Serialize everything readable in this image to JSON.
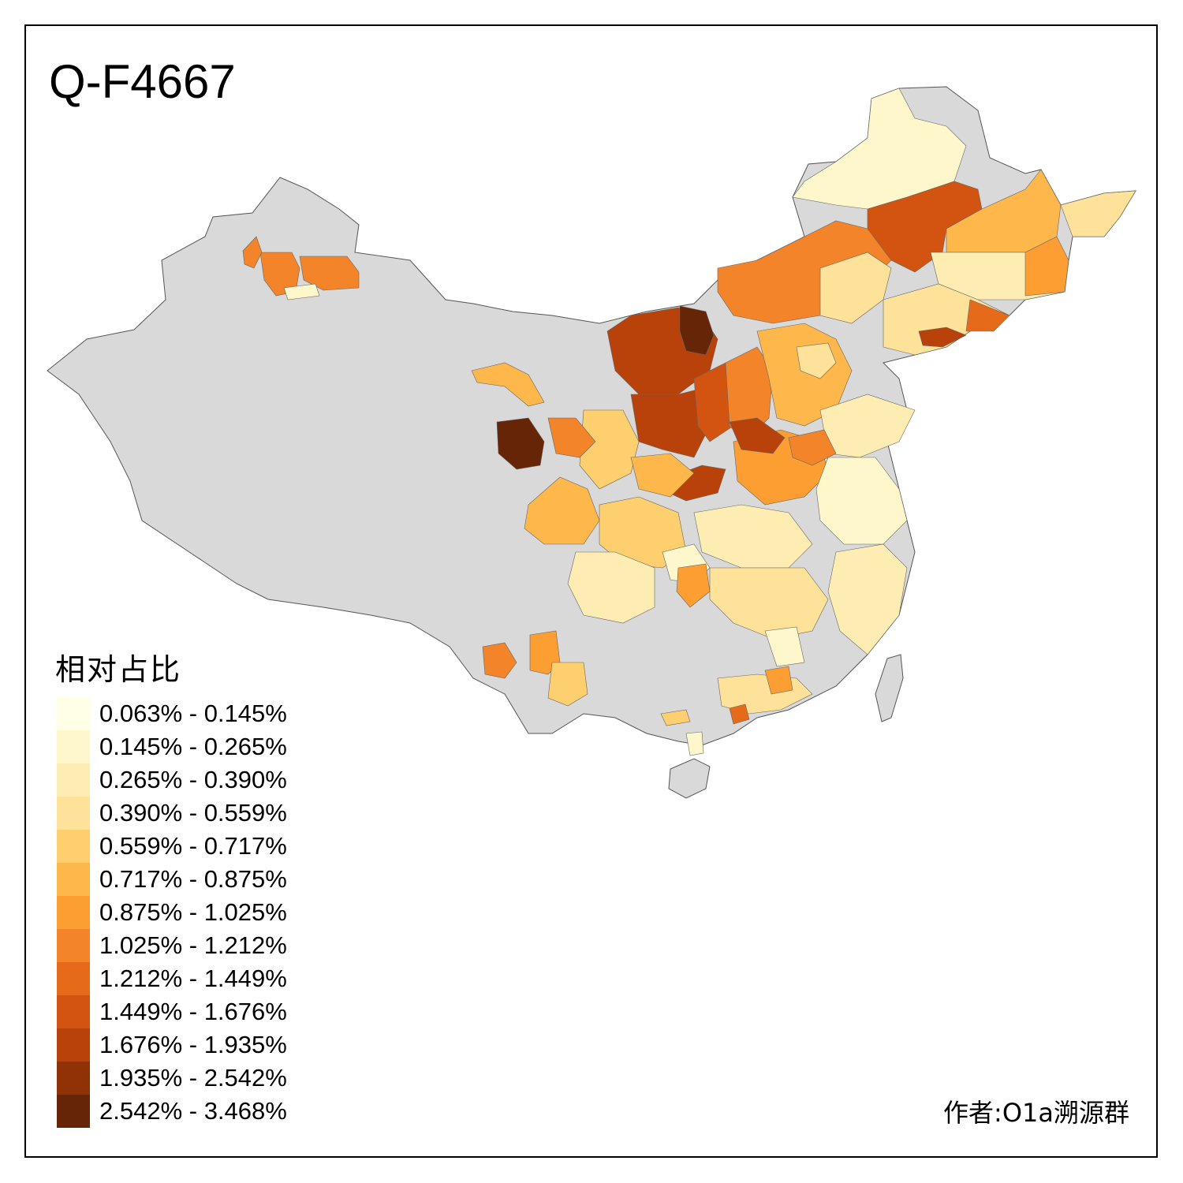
{
  "title": "Q-F4667",
  "legend": {
    "title": "相对占比",
    "items": [
      {
        "label": "0.063% - 0.145%",
        "color": "#ffffe5"
      },
      {
        "label": "0.145% - 0.265%",
        "color": "#fff7cc"
      },
      {
        "label": "0.265% - 0.390%",
        "color": "#feedb3"
      },
      {
        "label": "0.390% - 0.559%",
        "color": "#fee29a"
      },
      {
        "label": "0.559% - 0.717%",
        "color": "#fecf6e"
      },
      {
        "label": "0.717% - 0.875%",
        "color": "#feb74a"
      },
      {
        "label": "0.875% - 1.025%",
        "color": "#fd9e33"
      },
      {
        "label": "1.025% - 1.212%",
        "color": "#f3842a"
      },
      {
        "label": "1.212% - 1.449%",
        "color": "#e56b1b"
      },
      {
        "label": "1.449% - 1.676%",
        "color": "#d35410"
      },
      {
        "label": "1.676% - 1.935%",
        "color": "#b84209"
      },
      {
        "label": "1.935% - 2.542%",
        "color": "#8f3306"
      },
      {
        "label": "2.542% - 3.468%",
        "color": "#662506"
      }
    ]
  },
  "no_data_color": "#d9d9d9",
  "author": "作者:O1a溯源群"
}
